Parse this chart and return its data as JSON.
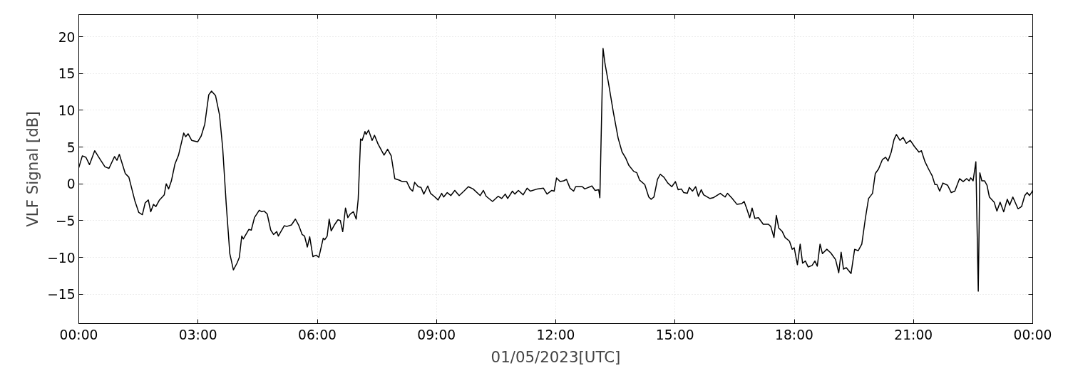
{
  "chart_data": {
    "type": "line",
    "xlabel": "01/05/2023[UTC]",
    "ylabel": "VLF Signal [dB]",
    "xlim": [
      0,
      24
    ],
    "xticks": [
      {
        "value": 0,
        "label": "00:00"
      },
      {
        "value": 3,
        "label": "03:00"
      },
      {
        "value": 6,
        "label": "06:00"
      },
      {
        "value": 9,
        "label": "09:00"
      },
      {
        "value": 12,
        "label": "12:00"
      },
      {
        "value": 15,
        "label": "15:00"
      },
      {
        "value": 18,
        "label": "18:00"
      },
      {
        "value": 21,
        "label": "21:00"
      },
      {
        "value": 24,
        "label": "00:00"
      }
    ],
    "ylim": [
      -19,
      23
    ],
    "yticks": [
      {
        "value": -15,
        "label": "−15"
      },
      {
        "value": -10,
        "label": "−10"
      },
      {
        "value": -5,
        "label": "−5"
      },
      0,
      5,
      10,
      15,
      20
    ],
    "grid": true,
    "marker": "none",
    "line_style": "solid",
    "series": [
      {
        "color": "#000000",
        "x": [
          0,
          0.09,
          0.18,
          0.27,
          0.4,
          0.54,
          0.66,
          0.76,
          0.9,
          0.96,
          1.02,
          1.17,
          1.26,
          1.41,
          1.51,
          1.6,
          1.67,
          1.75,
          1.81,
          1.88,
          1.94,
          2.03,
          2.15,
          2.2,
          2.26,
          2.33,
          2.42,
          2.51,
          2.64,
          2.69,
          2.75,
          2.84,
          2.99,
          3.08,
          3.17,
          3.27,
          3.34,
          3.44,
          3.54,
          3.62,
          3.71,
          3.8,
          3.89,
          3.98,
          4.04,
          4.1,
          4.14,
          4.28,
          4.34,
          4.42,
          4.54,
          4.6,
          4.66,
          4.74,
          4.83,
          4.9,
          4.98,
          5.02,
          5.17,
          5.23,
          5.35,
          5.45,
          5.53,
          5.62,
          5.68,
          5.75,
          5.81,
          5.89,
          5.97,
          6.04,
          6.15,
          6.19,
          6.25,
          6.3,
          6.35,
          6.43,
          6.52,
          6.58,
          6.64,
          6.71,
          6.77,
          6.83,
          6.91,
          6.98,
          7.03,
          7.09,
          7.13,
          7.2,
          7.23,
          7.29,
          7.38,
          7.44,
          7.53,
          7.68,
          7.77,
          7.86,
          7.95,
          8.06,
          8.14,
          8.25,
          8.34,
          8.4,
          8.45,
          8.54,
          8.61,
          8.68,
          8.78,
          8.85,
          8.94,
          9.04,
          9.13,
          9.18,
          9.27,
          9.36,
          9.46,
          9.57,
          9.69,
          9.8,
          9.92,
          10.1,
          10.18,
          10.25,
          10.41,
          10.55,
          10.64,
          10.73,
          10.79,
          10.91,
          10.97,
          11.06,
          11.18,
          11.28,
          11.36,
          11.54,
          11.69,
          11.78,
          11.9,
          11.96,
          12.02,
          12.11,
          12.2,
          12.27,
          12.36,
          12.45,
          12.5,
          12.67,
          12.73,
          12.91,
          12.99,
          13.08,
          13.11,
          13.19,
          13.24,
          13.33,
          13.45,
          13.57,
          13.67,
          13.76,
          13.84,
          13.96,
          14.04,
          14.11,
          14.24,
          14.34,
          14.4,
          14.47,
          14.56,
          14.63,
          14.72,
          14.82,
          14.92,
          15.01,
          15.08,
          15.16,
          15.22,
          15.31,
          15.36,
          15.44,
          15.52,
          15.59,
          15.66,
          15.72,
          15.88,
          15.96,
          16.14,
          16.26,
          16.32,
          16.44,
          16.56,
          16.68,
          16.74,
          16.8,
          16.88,
          16.94,
          17.01,
          17.1,
          17.22,
          17.35,
          17.41,
          17.49,
          17.55,
          17.61,
          17.7,
          17.77,
          17.88,
          17.95,
          18.0,
          18.08,
          18.15,
          18.21,
          18.28,
          18.35,
          18.45,
          18.52,
          18.58,
          18.65,
          18.71,
          18.82,
          18.92,
          19.04,
          19.12,
          19.18,
          19.24,
          19.31,
          19.43,
          19.52,
          19.61,
          19.7,
          19.79,
          19.87,
          19.97,
          20.04,
          20.12,
          20.22,
          20.3,
          20.36,
          20.44,
          20.51,
          20.57,
          20.66,
          20.74,
          20.82,
          20.92,
          21.02,
          21.14,
          21.2,
          21.29,
          21.38,
          21.47,
          21.54,
          21.59,
          21.66,
          21.74,
          21.86,
          21.95,
          22.04,
          22.16,
          22.25,
          22.34,
          22.4,
          22.44,
          22.5,
          22.57,
          22.63,
          22.67,
          22.72,
          22.79,
          22.85,
          22.91,
          23.03,
          23.1,
          23.18,
          23.27,
          23.36,
          23.42,
          23.5,
          23.63,
          23.72,
          23.8,
          23.86,
          23.92,
          23.98,
          24.0
        ],
        "values": [
          2.2,
          3.8,
          3.6,
          2.6,
          4.5,
          3.3,
          2.3,
          2.1,
          3.7,
          3.2,
          4.0,
          1.4,
          0.9,
          -2.3,
          -3.9,
          -4.2,
          -2.6,
          -2.2,
          -3.8,
          -2.8,
          -3.1,
          -2.2,
          -1.5,
          0,
          -0.7,
          0.4,
          2.7,
          3.9,
          6.9,
          6.4,
          6.8,
          5.9,
          5.7,
          6.5,
          8.1,
          12.1,
          12.6,
          12.0,
          9.4,
          4.9,
          -2.8,
          -9.5,
          -11.7,
          -10.8,
          -10.0,
          -7.1,
          -7.5,
          -6.2,
          -6.3,
          -4.6,
          -3.6,
          -3.8,
          -3.7,
          -4.1,
          -6.3,
          -6.9,
          -6.5,
          -7.1,
          -5.7,
          -5.8,
          -5.6,
          -4.8,
          -5.6,
          -6.9,
          -7.1,
          -8.6,
          -7.2,
          -9.9,
          -9.7,
          -10.0,
          -7.4,
          -7.6,
          -7.1,
          -4.8,
          -6.4,
          -5.6,
          -4.9,
          -5.0,
          -6.5,
          -3.3,
          -4.6,
          -4.1,
          -3.8,
          -4.8,
          -2.1,
          6.1,
          5.9,
          7.1,
          6.7,
          7.3,
          5.9,
          6.6,
          5.4,
          3.9,
          4.7,
          3.8,
          0.7,
          0.5,
          0.3,
          0.3,
          -0.7,
          -1.0,
          0.2,
          -0.4,
          -0.5,
          -1.4,
          -0.3,
          -1.3,
          -1.7,
          -2.2,
          -1.3,
          -1.8,
          -1.2,
          -1.6,
          -0.9,
          -1.6,
          -1.0,
          -0.4,
          -0.7,
          -1.6,
          -0.9,
          -1.7,
          -2.4,
          -1.7,
          -2.0,
          -1.4,
          -2.0,
          -1.0,
          -1.4,
          -0.9,
          -1.5,
          -0.6,
          -1.0,
          -0.7,
          -0.6,
          -1.4,
          -0.9,
          -1.0,
          0.8,
          0.3,
          0.4,
          0.6,
          -0.6,
          -1.0,
          -0.4,
          -0.4,
          -0.7,
          -0.3,
          -0.9,
          -0.8,
          -1.9,
          18.4,
          16.3,
          13.6,
          9.7,
          6.2,
          4.3,
          3.5,
          2.5,
          1.7,
          1.5,
          0.5,
          -0.1,
          -1.8,
          -2.1,
          -1.8,
          0.6,
          1.3,
          0.9,
          0.1,
          -0.4,
          0.3,
          -0.8,
          -0.7,
          -1.2,
          -1.3,
          -0.5,
          -1.0,
          -0.4,
          -1.7,
          -0.8,
          -1.5,
          -2.0,
          -1.9,
          -1.3,
          -1.8,
          -1.3,
          -2.0,
          -2.8,
          -2.7,
          -2.4,
          -3.3,
          -4.6,
          -3.3,
          -4.7,
          -4.6,
          -5.5,
          -5.5,
          -5.8,
          -7.3,
          -4.3,
          -6.0,
          -6.5,
          -7.3,
          -7.8,
          -8.9,
          -8.7,
          -11.0,
          -8.2,
          -10.8,
          -10.5,
          -11.3,
          -11.1,
          -10.5,
          -11.2,
          -8.2,
          -9.5,
          -8.9,
          -9.4,
          -10.3,
          -12.1,
          -9.3,
          -11.6,
          -11.4,
          -12.2,
          -8.9,
          -9.1,
          -8.2,
          -4.7,
          -2.0,
          -1.3,
          1.4,
          2.0,
          3.3,
          3.6,
          3.1,
          4.3,
          6.0,
          6.7,
          5.9,
          6.3,
          5.5,
          5.9,
          5.1,
          4.3,
          4.5,
          3.0,
          2.0,
          1.1,
          -0.1,
          -0.1,
          -1.0,
          0.1,
          -0.2,
          -1.2,
          -1.0,
          0.7,
          0.3,
          0.7,
          0.4,
          0.8,
          0.4,
          3.0,
          -14.6,
          1.5,
          0.4,
          0.4,
          -0.2,
          -1.8,
          -2.5,
          -3.7,
          -2.5,
          -3.8,
          -2.1,
          -2.9,
          -1.8,
          -3.4,
          -3.1,
          -1.6,
          -1.2,
          -1.6,
          -1.1,
          -0.9
        ]
      }
    ]
  }
}
